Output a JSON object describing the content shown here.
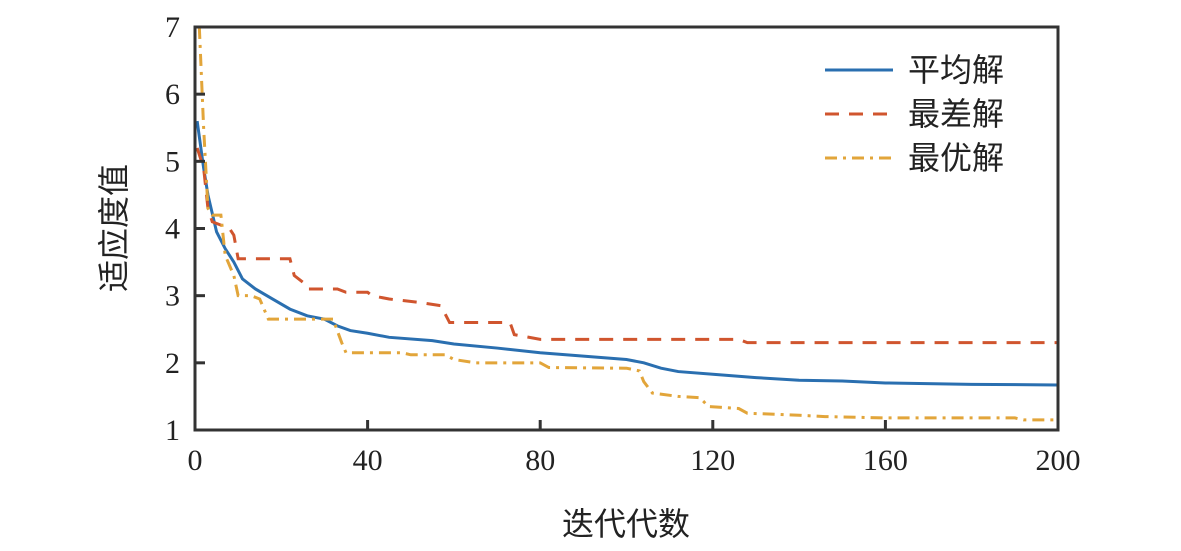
{
  "chart_data": {
    "type": "line",
    "title": "",
    "xlabel": "迭代代数",
    "ylabel": "适应度值",
    "xlim": [
      0,
      200
    ],
    "ylim": [
      1,
      7
    ],
    "xticks": [
      0,
      40,
      80,
      120,
      160,
      200
    ],
    "yticks": [
      1,
      2,
      3,
      4,
      5,
      6,
      7
    ],
    "grid": false,
    "legend_position": "top-right",
    "series": [
      {
        "name": "平均解",
        "color": "#2a6fb0",
        "style": "solid",
        "x": [
          0.5,
          2,
          3,
          5,
          7,
          9,
          11,
          14,
          18,
          22,
          26,
          30,
          33,
          36,
          40,
          45,
          55,
          60,
          70,
          80,
          90,
          100,
          104,
          108,
          112,
          120,
          130,
          140,
          150,
          160,
          180,
          200
        ],
        "y": [
          5.6,
          4.9,
          4.5,
          3.95,
          3.7,
          3.5,
          3.25,
          3.1,
          2.95,
          2.8,
          2.7,
          2.65,
          2.55,
          2.48,
          2.44,
          2.38,
          2.33,
          2.28,
          2.22,
          2.15,
          2.1,
          2.05,
          2.0,
          1.92,
          1.87,
          1.83,
          1.78,
          1.74,
          1.73,
          1.7,
          1.68,
          1.67
        ]
      },
      {
        "name": "最差解",
        "color": "#d0552e",
        "style": "dashed",
        "x": [
          0.5,
          2,
          3,
          4,
          6,
          8,
          9,
          10,
          22,
          23,
          25,
          26,
          33,
          35,
          40,
          41,
          45,
          52,
          57,
          59,
          73,
          74,
          80,
          126,
          128,
          200
        ],
        "y": [
          5.2,
          4.9,
          4.3,
          4.1,
          4.05,
          4.0,
          3.9,
          3.55,
          3.55,
          3.3,
          3.2,
          3.1,
          3.1,
          3.05,
          3.05,
          3.0,
          2.95,
          2.9,
          2.85,
          2.6,
          2.6,
          2.42,
          2.35,
          2.35,
          2.3,
          2.3
        ]
      },
      {
        "name": "最优解",
        "color": "#e2a53a",
        "style": "dashdot",
        "x": [
          1,
          2,
          3,
          4,
          6,
          7,
          9,
          10,
          13,
          15,
          17,
          32,
          34,
          35,
          48,
          50,
          58,
          60,
          65,
          80,
          82,
          100,
          103,
          104,
          106,
          112,
          117,
          119,
          126,
          128,
          140,
          146,
          160,
          190,
          192,
          200
        ],
        "y": [
          7.0,
          5.5,
          4.3,
          4.2,
          4.2,
          3.6,
          3.3,
          3.0,
          3.0,
          2.95,
          2.65,
          2.65,
          2.3,
          2.15,
          2.15,
          2.12,
          2.12,
          2.05,
          2.0,
          2.0,
          1.93,
          1.92,
          1.88,
          1.72,
          1.55,
          1.5,
          1.48,
          1.35,
          1.32,
          1.25,
          1.22,
          1.2,
          1.18,
          1.18,
          1.15,
          1.15
        ]
      }
    ]
  }
}
